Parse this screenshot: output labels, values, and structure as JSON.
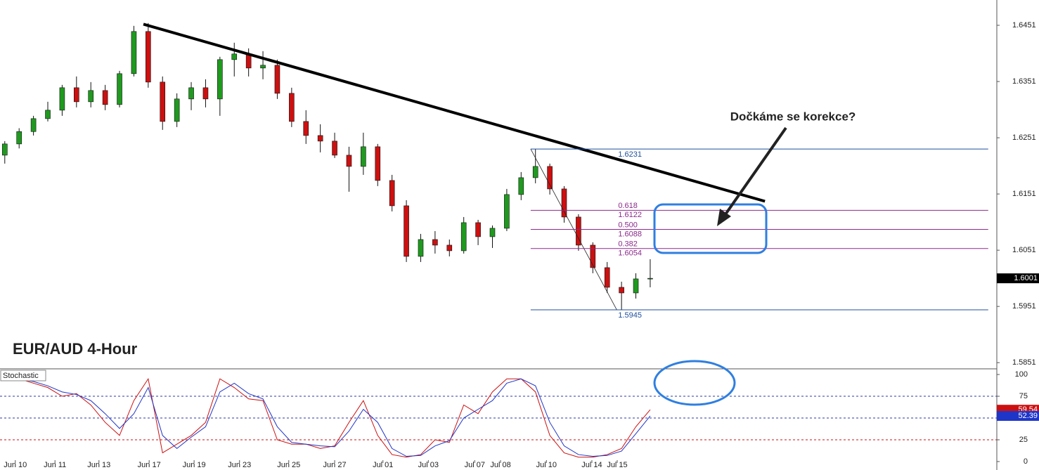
{
  "chart_data": {
    "type": "candlestick",
    "title": "EUR/AUD 4-Hour",
    "annotation": "Dočkáme se korekce?",
    "xlim": [
      -1,
      207.5
    ],
    "xticks": [
      {
        "value": 2.2,
        "label": "Jun 10"
      },
      {
        "value": 10.5,
        "label": "Jun 11"
      },
      {
        "value": 19.7,
        "label": "Jun 13"
      },
      {
        "value": 30.2,
        "label": "Jun 17"
      },
      {
        "value": 39.6,
        "label": "Jun 19"
      },
      {
        "value": 49.1,
        "label": "Jun 23"
      },
      {
        "value": 59.4,
        "label": "Jun 25"
      },
      {
        "value": 69,
        "label": "Jun 27"
      },
      {
        "value": 79.1,
        "label": "Jul 01"
      },
      {
        "value": 88.6,
        "label": "Jul 03"
      },
      {
        "value": 98.3,
        "label": "Jul 07"
      },
      {
        "value": 103.7,
        "label": "Jul 08"
      },
      {
        "value": 113.3,
        "label": "Jul 10"
      },
      {
        "value": 122.8,
        "label": "Jul 14"
      },
      {
        "value": 128.1,
        "label": "Jul 15"
      }
    ],
    "ylim": [
      1.584,
      1.6496
    ],
    "yticks": [
      1.5851,
      1.5951,
      1.6051,
      1.6151,
      1.6251,
      1.6351,
      1.6451
    ],
    "up_color": "#1f9a1f",
    "down_color": "#cc1010",
    "x": [
      0,
      3,
      6,
      9,
      12,
      15,
      18,
      21,
      24,
      27,
      30,
      33,
      36,
      39,
      42,
      45,
      48,
      51,
      54,
      57,
      60,
      63,
      66,
      69,
      72,
      75,
      78,
      81,
      84,
      87,
      90,
      93,
      96,
      99,
      102,
      105,
      108,
      111,
      114,
      117,
      120,
      123,
      126,
      129,
      132,
      135
    ],
    "open": [
      1.622,
      1.624,
      1.6262,
      1.6285,
      1.63,
      1.634,
      1.6315,
      1.6335,
      1.631,
      1.6365,
      1.644,
      1.635,
      1.628,
      1.632,
      1.634,
      1.632,
      1.639,
      1.64,
      1.6375,
      1.638,
      1.633,
      1.628,
      1.6255,
      1.6245,
      1.622,
      1.62,
      1.6235,
      1.6175,
      1.613,
      1.604,
      1.607,
      1.606,
      1.605,
      1.61,
      1.6075,
      1.609,
      1.615,
      1.618,
      1.62,
      1.616,
      1.611,
      1.606,
      1.602,
      1.5985,
      1.5975,
      1.6
    ],
    "high": [
      1.6245,
      1.6268,
      1.629,
      1.6315,
      1.6345,
      1.636,
      1.635,
      1.6345,
      1.637,
      1.645,
      1.6455,
      1.636,
      1.633,
      1.635,
      1.6355,
      1.6395,
      1.642,
      1.641,
      1.6405,
      1.639,
      1.634,
      1.63,
      1.6275,
      1.626,
      1.6235,
      1.626,
      1.624,
      1.6185,
      1.614,
      1.608,
      1.6085,
      1.607,
      1.611,
      1.6105,
      1.6095,
      1.616,
      1.619,
      1.6231,
      1.6205,
      1.6165,
      1.6115,
      1.6065,
      1.603,
      1.5995,
      1.601,
      1.6035
    ],
    "low": [
      1.6205,
      1.6232,
      1.6255,
      1.628,
      1.629,
      1.6305,
      1.6305,
      1.63,
      1.6305,
      1.636,
      1.634,
      1.6265,
      1.627,
      1.63,
      1.6305,
      1.629,
      1.636,
      1.636,
      1.6355,
      1.632,
      1.627,
      1.624,
      1.6225,
      1.6215,
      1.6155,
      1.6185,
      1.6165,
      1.612,
      1.603,
      1.603,
      1.6045,
      1.604,
      1.6045,
      1.606,
      1.6055,
      1.6085,
      1.614,
      1.617,
      1.615,
      1.61,
      1.605,
      1.601,
      1.5975,
      1.5945,
      1.5965,
      1.5985
    ],
    "close": [
      1.624,
      1.6262,
      1.6285,
      1.63,
      1.634,
      1.6315,
      1.6335,
      1.631,
      1.6365,
      1.644,
      1.635,
      1.628,
      1.632,
      1.634,
      1.632,
      1.639,
      1.64,
      1.6375,
      1.638,
      1.633,
      1.628,
      1.6255,
      1.6245,
      1.622,
      1.62,
      1.6235,
      1.6175,
      1.613,
      1.604,
      1.607,
      1.606,
      1.605,
      1.61,
      1.6075,
      1.609,
      1.615,
      1.618,
      1.62,
      1.616,
      1.611,
      1.606,
      1.602,
      1.5985,
      1.5975,
      1.6,
      1.6001
    ],
    "trendline": {
      "x": [
        29,
        159
      ],
      "y": [
        1.6453,
        1.6138
      ],
      "color": "#000000"
    },
    "fib": {
      "x": [
        110,
        128
      ],
      "high": 1.6231,
      "low": 1.5945,
      "end_x": 205.7,
      "levels": [
        {
          "ratio": "0.618",
          "price": 1.6122
        },
        {
          "ratio": "0.500",
          "price": 1.6088
        },
        {
          "ratio": "0.382",
          "price": 1.6054
        }
      ]
    },
    "stochastic": {
      "name": "Stochastic",
      "ylim": [
        -9.7,
        106.5
      ],
      "yticks": [
        0,
        25,
        50,
        75,
        100
      ],
      "levels": [
        {
          "value": 75,
          "color": "#2b3aa8"
        },
        {
          "value": 50,
          "color": "#2b3aa8"
        },
        {
          "value": 25,
          "color": "#cc1010"
        }
      ],
      "series": [
        {
          "color": "#cc1010",
          "values": [
            95,
            95,
            90,
            85,
            75,
            78,
            65,
            45,
            30,
            70,
            95,
            10,
            20,
            30,
            45,
            95,
            85,
            72,
            70,
            25,
            20,
            20,
            15,
            18,
            45,
            70,
            30,
            8,
            5,
            8,
            25,
            22,
            65,
            55,
            80,
            95,
            95,
            80,
            30,
            10,
            5,
            5,
            8,
            15,
            40,
            59.54
          ]
        },
        {
          "color": "#1f35c8",
          "values": [
            93,
            94,
            92,
            87,
            80,
            77,
            70,
            55,
            38,
            55,
            85,
            30,
            15,
            28,
            40,
            80,
            90,
            78,
            72,
            40,
            22,
            20,
            18,
            17,
            35,
            60,
            45,
            15,
            6,
            7,
            18,
            24,
            50,
            60,
            70,
            90,
            95,
            87,
            45,
            18,
            8,
            6,
            7,
            12,
            32,
            52.39
          ]
        }
      ]
    }
  }
}
